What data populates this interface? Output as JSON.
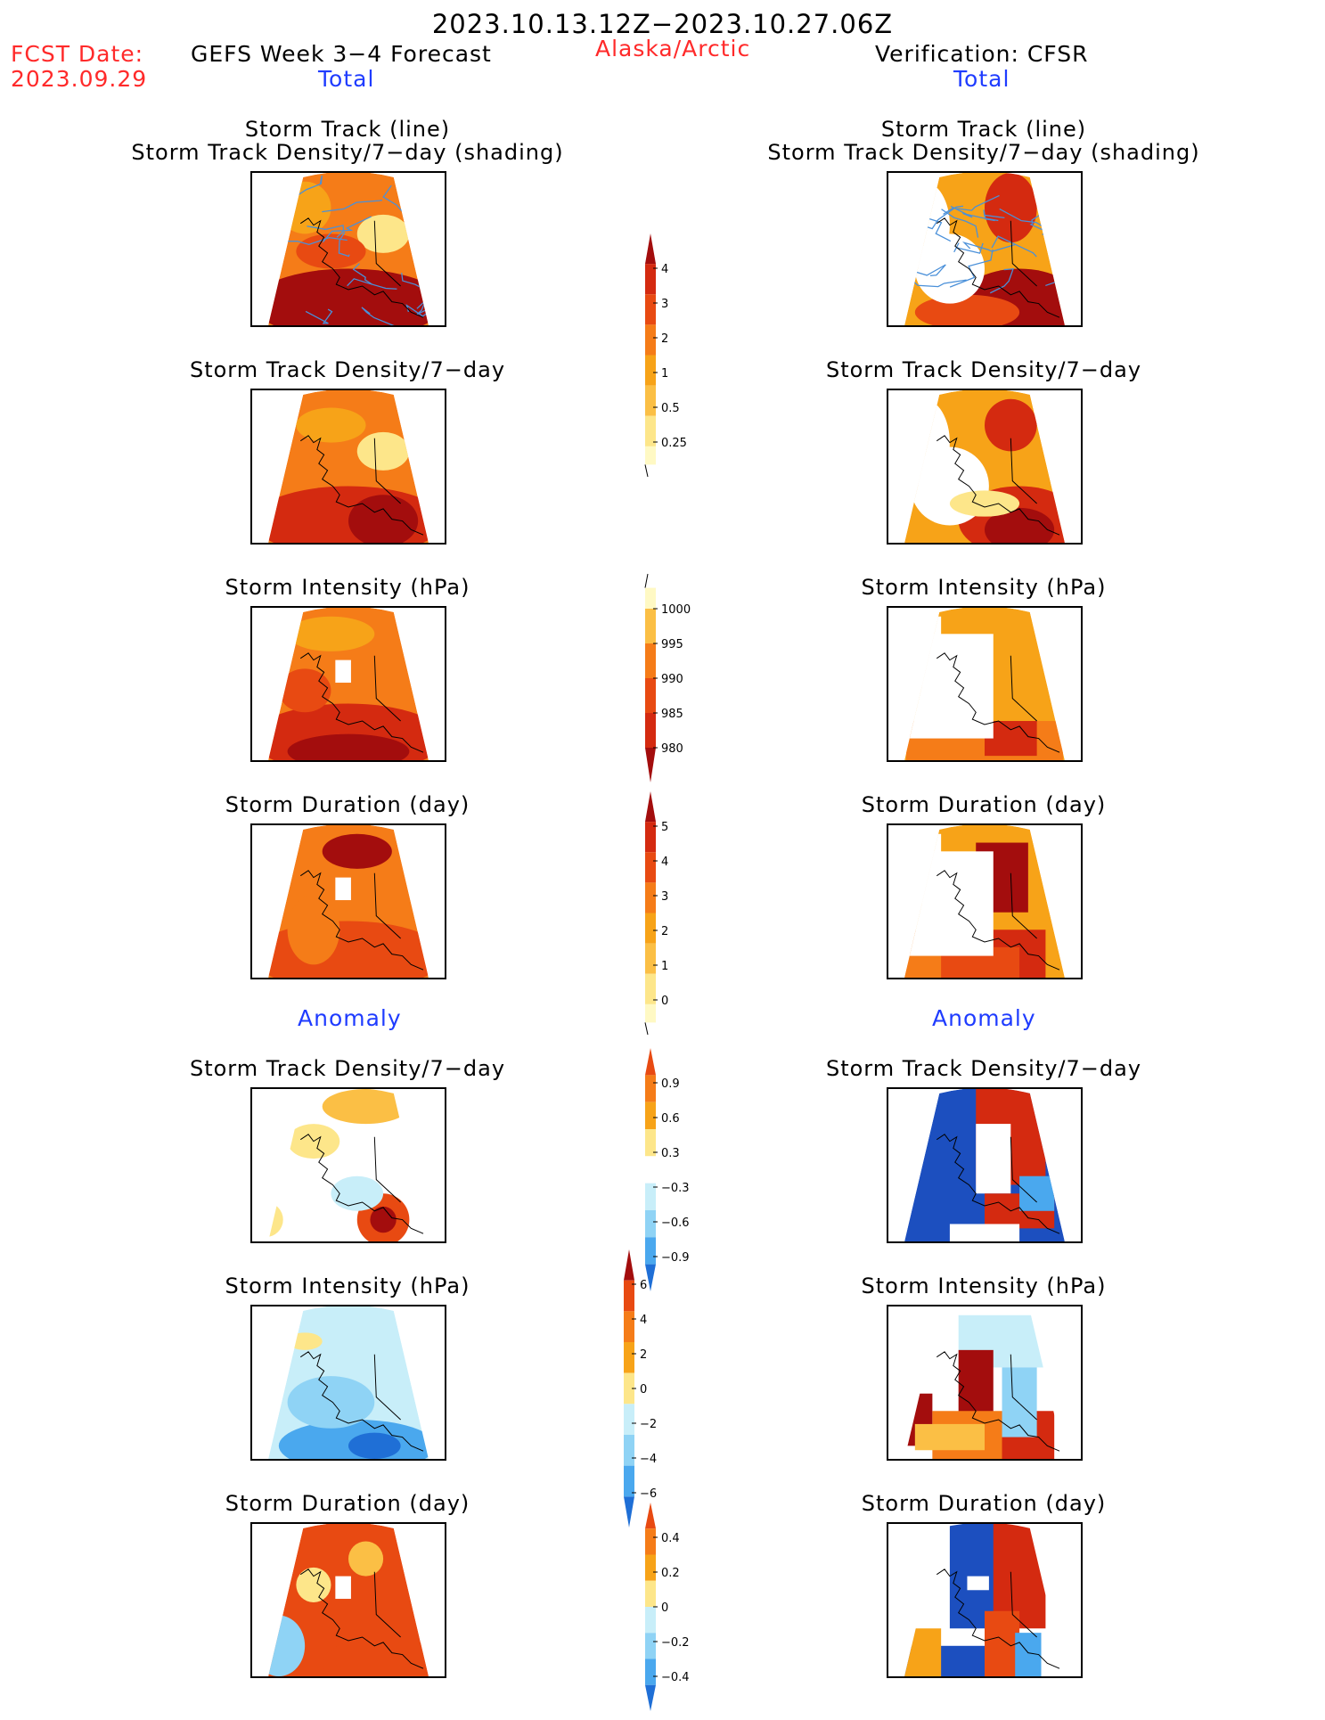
{
  "header": {
    "date_range": "2023.10.13.12Z−2023.10.27.06Z",
    "fcst_label": "FCST Date:",
    "fcst_date": "2023.09.29",
    "forecast_title": "GEFS Week 3−4 Forecast",
    "region": "Alaska/Arctic",
    "verification": "Verification: CFSR",
    "left_total": "Total",
    "right_total": "Total"
  },
  "sections": {
    "left_anomaly": "Anomaly",
    "right_anomaly": "Anomaly"
  },
  "panels": {
    "track_line": "Storm Track (line)",
    "track_density_shading": "Storm Track Density/7−day (shading)",
    "track_density": "Storm Track Density/7−day",
    "intensity": "Storm Intensity (hPa)",
    "duration": "Storm Duration (day)"
  },
  "colorbars": {
    "density": [
      "4",
      "3",
      "2",
      "1",
      "0.5",
      "0.25"
    ],
    "intensity": [
      "1000",
      "995",
      "990",
      "985",
      "980"
    ],
    "duration": [
      "5",
      "4",
      "3",
      "2",
      "1",
      "0"
    ],
    "density_anom": [
      "0.9",
      "0.6",
      "0.3",
      "−0.3",
      "−0.6",
      "−0.9"
    ],
    "intensity_anom": [
      "6",
      "4",
      "2",
      "0",
      "−2",
      "−4",
      "−6"
    ],
    "duration_anom": [
      "0.4",
      "0.2",
      "0",
      "−0.2",
      "−0.4"
    ]
  },
  "colors": {
    "header_red": "#ff2a2a",
    "header_blue": "#1f3cff",
    "warm": [
      "#fff9c4",
      "#fde68a",
      "#fbbf45",
      "#f7a318",
      "#f57c18",
      "#e84a12",
      "#d42a10",
      "#a30d0d"
    ],
    "cool": [
      "#c8eef9",
      "#8fd3f5",
      "#4aa8ee",
      "#1f6fd6",
      "#1c4fbf"
    ],
    "track_line": "#4a90d9"
  }
}
